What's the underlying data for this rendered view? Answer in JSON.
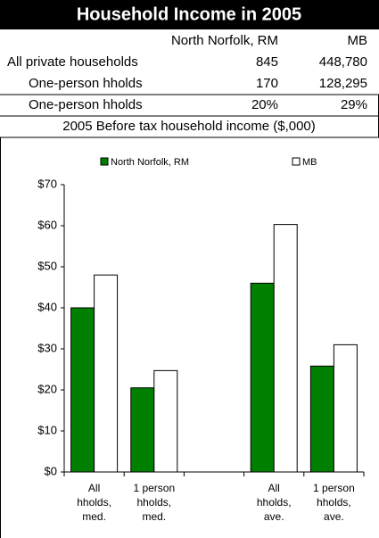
{
  "header": {
    "title": "Household Income in 2005"
  },
  "table": {
    "columns": [
      "North Norfolk, RM",
      "MB"
    ],
    "rows": [
      [
        "All private households",
        "845",
        "448,780"
      ],
      [
        "One-person hholds",
        "170",
        "128,295"
      ],
      [
        "One-person hholds",
        "20%",
        "29%"
      ]
    ]
  },
  "chart_data": {
    "type": "bar",
    "title": "2005 Before tax household income ($,000)",
    "categories": [
      [
        "All",
        "hholds,",
        "med."
      ],
      [
        "1 person",
        "hholds,",
        "med."
      ],
      null,
      [
        "All",
        "hholds,",
        "ave."
      ],
      [
        "1 person",
        "hholds,",
        "ave."
      ]
    ],
    "series": [
      {
        "name": "North Norfolk, RM",
        "color": "#008000",
        "values": [
          40,
          20.5,
          null,
          46,
          25.8
        ]
      },
      {
        "name": "MB",
        "color": "#ffffff",
        "values": [
          48,
          24.7,
          null,
          60.3,
          31
        ]
      }
    ],
    "ylim": [
      0,
      70
    ],
    "yticks": [
      {
        "value": 0,
        "label": "$0"
      },
      {
        "value": 10,
        "label": "$10"
      },
      {
        "value": 20,
        "label": "$20"
      },
      {
        "value": 30,
        "label": "$30"
      },
      {
        "value": 40,
        "label": "$40"
      },
      {
        "value": 50,
        "label": "$50"
      },
      {
        "value": 60,
        "label": "$60"
      },
      {
        "value": 70,
        "label": "$70"
      }
    ],
    "grid": false
  }
}
